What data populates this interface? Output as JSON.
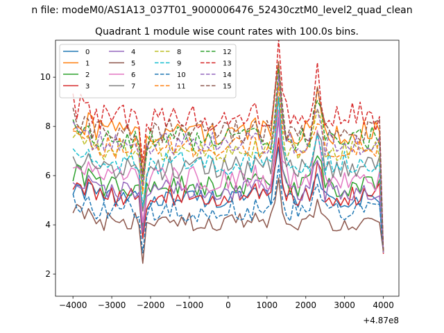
{
  "figure": {
    "suptitle": "n file: modeM0/AS1A13_037T01_9000006476_52430cztM0_level2_quad_clean",
    "title": "Quadrant 1 module wise count rates with 100.0s bins.",
    "offset_label": "+4.87e8"
  },
  "chart_data": {
    "type": "line",
    "title": "Quadrant 1 module wise count rates with 100.0s bins.",
    "xlabel": "",
    "ylabel": "",
    "x_offset": 487000000,
    "xlim": [
      -4450,
      4400
    ],
    "ylim": [
      1.1,
      11.5
    ],
    "xticks": [
      -4000,
      -3000,
      -2000,
      -1000,
      0,
      1000,
      2000,
      3000,
      4000
    ],
    "xtick_labels": [
      "−4000",
      "−3000",
      "−2000",
      "−1000",
      "0",
      "1000",
      "2000",
      "3000",
      "4000"
    ],
    "yticks": [
      2,
      4,
      6,
      8,
      10
    ],
    "ytick_labels": [
      "2",
      "4",
      "6",
      "8",
      "10"
    ],
    "legend_location": "upper-left",
    "x_start": -4000,
    "x_step": 100,
    "series": [
      {
        "name": "0",
        "color": "#1f77b4",
        "dash": false,
        "base": 5.1,
        "amp": 0.18,
        "peak": 0.4
      },
      {
        "name": "1",
        "color": "#ff7f0e",
        "dash": false,
        "base": 7.8,
        "amp": 0.25,
        "peak": 0.55
      },
      {
        "name": "2",
        "color": "#2ca02c",
        "dash": false,
        "base": 5.6,
        "amp": 0.22,
        "peak": 0.55
      },
      {
        "name": "3",
        "color": "#d62728",
        "dash": false,
        "base": 5.2,
        "amp": 0.22,
        "peak": 0.45
      },
      {
        "name": "4",
        "color": "#9467bd",
        "dash": false,
        "base": 5.4,
        "amp": 0.2,
        "peak": 0.6
      },
      {
        "name": "5",
        "color": "#8c564b",
        "dash": false,
        "base": 4.1,
        "amp": 0.18,
        "peak": 0.35
      },
      {
        "name": "6",
        "color": "#e377c2",
        "dash": false,
        "base": 5.9,
        "amp": 0.25,
        "peak": 0.55
      },
      {
        "name": "7",
        "color": "#7f7f7f",
        "dash": false,
        "base": 6.3,
        "amp": 0.22,
        "peak": 0.6
      },
      {
        "name": "8",
        "color": "#bcbd22",
        "dash": true,
        "base": 7.0,
        "amp": 0.22,
        "peak": 0.55
      },
      {
        "name": "9",
        "color": "#17becf",
        "dash": true,
        "base": 6.5,
        "amp": 0.22,
        "peak": 0.55
      },
      {
        "name": "10",
        "color": "#1f77b4",
        "dash": true,
        "base": 4.6,
        "amp": 0.22,
        "peak": 0.35
      },
      {
        "name": "11",
        "color": "#ff7f0e",
        "dash": true,
        "base": 7.1,
        "amp": 0.22,
        "peak": 0.55
      },
      {
        "name": "12",
        "color": "#2ca02c",
        "dash": true,
        "base": 7.5,
        "amp": 0.22,
        "peak": 0.6
      },
      {
        "name": "13",
        "color": "#d62728",
        "dash": true,
        "base": 8.4,
        "amp": 0.28,
        "peak": 0.65
      },
      {
        "name": "14",
        "color": "#9467bd",
        "dash": true,
        "base": 7.3,
        "amp": 0.22,
        "peak": 0.6
      },
      {
        "name": "15",
        "color": "#8c564b",
        "dash": true,
        "base": 7.8,
        "amp": 0.22,
        "peak": 0.6
      }
    ]
  }
}
